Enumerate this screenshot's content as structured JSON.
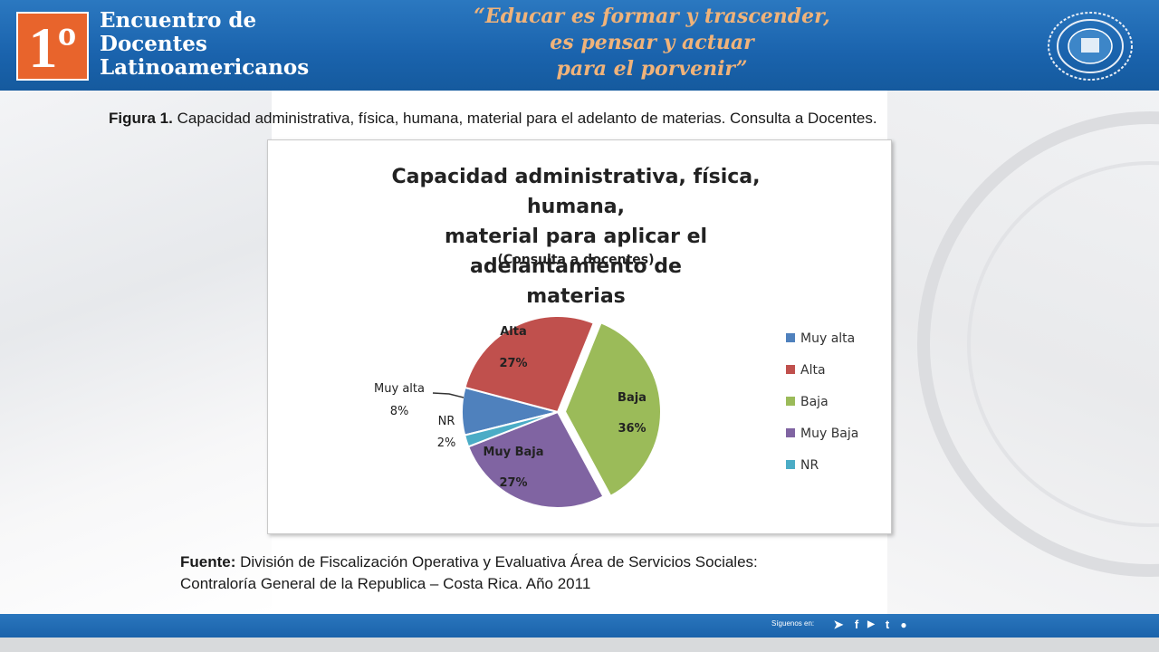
{
  "header": {
    "logo_number": "1º",
    "title_lines": [
      "Encuentro de",
      "Docentes",
      "Latinoamericanos"
    ],
    "motto_lines": [
      "“Educar es formar y trascender,",
      "es pensar y actuar",
      "para el porvenir”"
    ]
  },
  "caption": {
    "label": "Figura 1.",
    "text": " Capacidad administrativa, física, humana, material para el adelanto de materias. Consulta a Docentes."
  },
  "chart_data": {
    "type": "pie",
    "title_lines": [
      "Capacidad administrativa, física, humana,",
      "material para aplicar el adelantamiento de",
      "materias"
    ],
    "subtitle": "(Consulta a docentes)",
    "legend_position": "right",
    "slices": [
      {
        "name": "Muy alta",
        "value": 8,
        "label": "8%",
        "color": "#4f81bd"
      },
      {
        "name": "Alta",
        "value": 27,
        "label": "27%",
        "color": "#c0504d"
      },
      {
        "name": "Baja",
        "value": 36,
        "label": "36%",
        "color": "#9bbb59"
      },
      {
        "name": "Muy Baja",
        "value": 27,
        "label": "27%",
        "color": "#8064a2"
      },
      {
        "name": "NR",
        "value": 2,
        "label": "2%",
        "color": "#4bacc6"
      }
    ]
  },
  "source": {
    "label": "Fuente:",
    "line1": " División de Fiscalización Operativa y Evaluativa Área de Servicios Sociales:",
    "line2": "Contraloría General de la Republica – Costa Rica. Año 2011"
  },
  "footer": {
    "follow_text": "Síguenos en:",
    "icons": [
      "twitter-icon",
      "facebook-icon",
      "youtube-icon",
      "tuenti-icon",
      "blog-icon"
    ]
  }
}
